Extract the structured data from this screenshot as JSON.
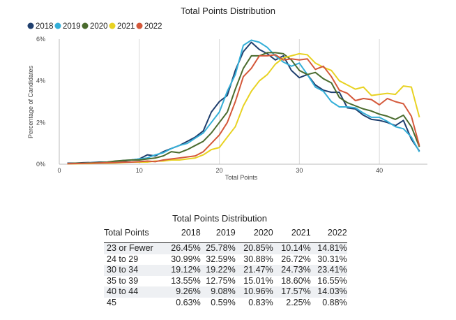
{
  "chart_data": {
    "type": "line",
    "title": "Total Points Distribution",
    "xlabel": "Total Points",
    "ylabel": "Percentage of Candidates",
    "xlim": [
      0,
      46
    ],
    "ylim": [
      0,
      6
    ],
    "xticks": [
      0,
      10,
      20,
      30,
      40
    ],
    "xtick_labels": [
      "0",
      "10",
      "20",
      "30",
      "40"
    ],
    "yticks": [
      0,
      2,
      4,
      6
    ],
    "ytick_labels": [
      "0%",
      "2%",
      "4%",
      "6%"
    ],
    "grid": "vertical",
    "legend": "top-left",
    "x": [
      1,
      2,
      3,
      4,
      5,
      6,
      7,
      8,
      9,
      10,
      11,
      12,
      13,
      14,
      15,
      16,
      17,
      18,
      19,
      20,
      21,
      22,
      23,
      24,
      25,
      26,
      27,
      28,
      29,
      30,
      31,
      32,
      33,
      34,
      35,
      36,
      37,
      38,
      39,
      40,
      41,
      42,
      43,
      44,
      45
    ],
    "series": [
      {
        "name": "2018",
        "color": "#1f3f6e",
        "values": [
          0.05,
          0.05,
          0.07,
          0.08,
          0.1,
          0.1,
          0.12,
          0.15,
          0.2,
          0.25,
          0.45,
          0.4,
          0.6,
          0.75,
          0.9,
          1.1,
          1.3,
          1.6,
          2.5,
          3.0,
          3.3,
          4.5,
          5.4,
          5.85,
          5.5,
          5.3,
          5.0,
          5.2,
          4.5,
          4.15,
          4.3,
          3.8,
          3.55,
          3.45,
          3.45,
          2.7,
          2.65,
          2.35,
          2.15,
          2.1,
          2.0,
          1.85,
          2.1,
          1.2,
          0.63
        ]
      },
      {
        "name": "2019",
        "color": "#34afd8",
        "values": [
          0.02,
          0.03,
          0.05,
          0.07,
          0.08,
          0.1,
          0.12,
          0.18,
          0.2,
          0.25,
          0.3,
          0.45,
          0.55,
          0.75,
          0.9,
          1.0,
          1.25,
          1.5,
          2.0,
          2.5,
          3.5,
          4.3,
          5.7,
          5.95,
          5.85,
          5.6,
          5.2,
          4.9,
          4.7,
          4.85,
          4.3,
          3.7,
          3.5,
          3.0,
          2.75,
          2.75,
          2.7,
          2.45,
          2.25,
          2.25,
          2.05,
          1.8,
          1.7,
          1.3,
          0.59
        ]
      },
      {
        "name": "2020",
        "color": "#4a6b2e",
        "values": [
          0.03,
          0.05,
          0.05,
          0.06,
          0.08,
          0.1,
          0.15,
          0.18,
          0.2,
          0.2,
          0.25,
          0.3,
          0.4,
          0.6,
          0.55,
          0.7,
          0.9,
          1.1,
          1.5,
          2.0,
          2.5,
          3.6,
          4.6,
          5.2,
          5.2,
          5.35,
          5.35,
          5.3,
          5.0,
          4.5,
          4.3,
          4.4,
          4.1,
          3.9,
          3.2,
          2.95,
          2.8,
          2.65,
          2.55,
          2.4,
          2.3,
          2.15,
          2.35,
          1.8,
          0.83
        ]
      },
      {
        "name": "2021",
        "color": "#e8d222",
        "values": [
          0.02,
          0.02,
          0.03,
          0.03,
          0.05,
          0.05,
          0.06,
          0.08,
          0.1,
          0.1,
          0.1,
          0.15,
          0.15,
          0.2,
          0.2,
          0.25,
          0.3,
          0.45,
          0.7,
          0.8,
          1.3,
          1.8,
          2.8,
          3.5,
          4.0,
          4.3,
          4.8,
          5.1,
          5.2,
          5.3,
          5.25,
          4.85,
          4.65,
          4.5,
          4.0,
          3.8,
          3.6,
          3.7,
          3.3,
          3.35,
          3.4,
          3.35,
          3.75,
          3.7,
          2.25
        ]
      },
      {
        "name": "2022",
        "color": "#d4583a",
        "values": [
          0.02,
          0.03,
          0.04,
          0.05,
          0.06,
          0.07,
          0.08,
          0.1,
          0.1,
          0.12,
          0.15,
          0.12,
          0.2,
          0.25,
          0.3,
          0.35,
          0.4,
          0.6,
          1.0,
          1.4,
          2.0,
          3.0,
          4.2,
          4.6,
          5.2,
          5.2,
          5.25,
          5.0,
          5.05,
          5.0,
          5.05,
          4.55,
          4.7,
          4.2,
          3.55,
          3.4,
          3.05,
          3.15,
          3.1,
          2.85,
          3.15,
          3.0,
          2.9,
          2.3,
          0.88
        ]
      }
    ]
  },
  "table": {
    "title": "Total Points Distribution",
    "headers": [
      "Total Points",
      "2018",
      "2019",
      "2020",
      "2021",
      "2022"
    ],
    "rows": [
      [
        "23 or Fewer",
        "26.45%",
        "25.78%",
        "20.85%",
        "10.14%",
        "14.81%"
      ],
      [
        "24 to 29",
        "30.99%",
        "32.59%",
        "30.88%",
        "26.72%",
        "30.31%"
      ],
      [
        "30 to 34",
        "19.12%",
        "19.22%",
        "21.47%",
        "24.73%",
        "23.41%"
      ],
      [
        "35 to 39",
        "13.55%",
        "12.75%",
        "15.01%",
        "18.60%",
        "16.55%"
      ],
      [
        "40 to 44",
        "9.26%",
        "9.08%",
        "10.96%",
        "17.57%",
        "14.03%"
      ],
      [
        "45",
        "0.63%",
        "0.59%",
        "0.83%",
        "2.25%",
        "0.88%"
      ]
    ]
  }
}
